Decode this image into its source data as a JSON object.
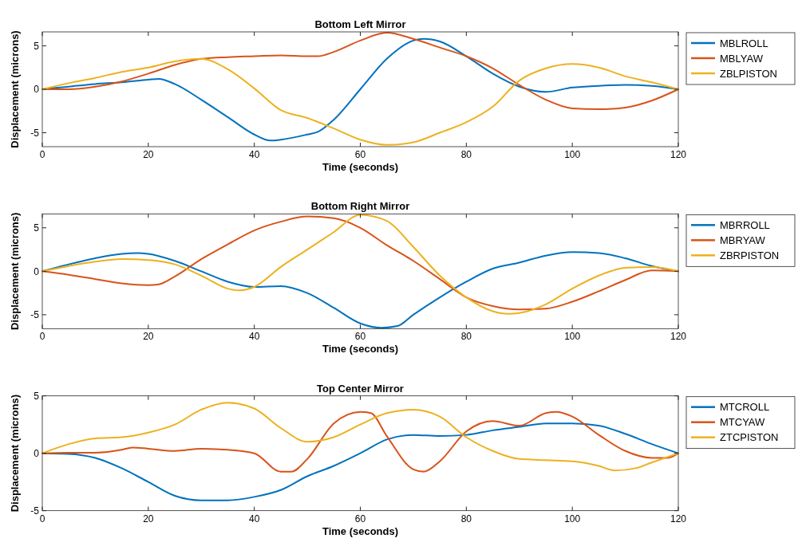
{
  "chart_data": [
    {
      "type": "line",
      "title": "Bottom Left Mirror",
      "xlabel": "Time (seconds)",
      "ylabel": "Displacement (microns)",
      "xlim": [
        0,
        120
      ],
      "xticks": [
        0,
        20,
        40,
        60,
        80,
        100,
        120
      ],
      "ylim": [
        -6.6,
        6.6
      ],
      "yticks": [
        -5,
        0,
        5
      ],
      "grid": false,
      "legend": "right",
      "marker": "none",
      "line_style": "solid",
      "series": [
        {
          "name": "MBLROLL",
          "color": "#0072bd",
          "x": [
            0,
            5,
            10,
            15,
            20,
            22,
            25,
            30,
            35,
            40,
            43,
            45,
            50,
            52,
            55,
            60,
            65,
            70,
            72,
            75,
            80,
            85,
            90,
            95,
            100,
            105,
            110,
            115,
            120
          ],
          "values": [
            0,
            0.3,
            0.6,
            0.8,
            1.1,
            1.2,
            0.6,
            -1.2,
            -3.2,
            -5.2,
            -5.9,
            -5.8,
            -5.2,
            -4.9,
            -3.5,
            0,
            3.5,
            5.6,
            5.8,
            5.5,
            3.8,
            1.8,
            0.3,
            -0.3,
            0.2,
            0.4,
            0.5,
            0.4,
            0
          ]
        },
        {
          "name": "MBLYAW",
          "color": "#d95319",
          "x": [
            0,
            5,
            10,
            15,
            20,
            25,
            30,
            35,
            40,
            45,
            50,
            52,
            55,
            60,
            65,
            70,
            75,
            80,
            85,
            90,
            95,
            100,
            105,
            110,
            115,
            120
          ],
          "values": [
            0,
            0,
            0.3,
            0.9,
            1.8,
            2.8,
            3.5,
            3.7,
            3.8,
            3.9,
            3.8,
            3.8,
            4.3,
            5.6,
            6.5,
            5.8,
            4.8,
            3.8,
            2.4,
            0.5,
            -1.2,
            -2.2,
            -2.3,
            -2.1,
            -1.3,
            0
          ]
        },
        {
          "name": "ZBLPISTON",
          "color": "#edb120",
          "x": [
            0,
            5,
            10,
            15,
            20,
            25,
            30,
            35,
            40,
            45,
            50,
            55,
            60,
            65,
            70,
            75,
            80,
            85,
            90,
            95,
            100,
            105,
            110,
            115,
            120
          ],
          "values": [
            0,
            0.7,
            1.3,
            2,
            2.5,
            3.2,
            3.5,
            2.3,
            0.1,
            -2.4,
            -3.3,
            -4.5,
            -5.8,
            -6.4,
            -6.1,
            -5,
            -3.8,
            -2,
            1,
            2.4,
            2.9,
            2.5,
            1.5,
            0.8,
            0
          ]
        }
      ]
    },
    {
      "type": "line",
      "title": "Bottom Right Mirror",
      "xlabel": "Time (seconds)",
      "ylabel": "Displacement (microns)",
      "xlim": [
        0,
        120
      ],
      "xticks": [
        0,
        20,
        40,
        60,
        80,
        100,
        120
      ],
      "ylim": [
        -6.6,
        6.6
      ],
      "yticks": [
        -5,
        0,
        5
      ],
      "grid": false,
      "legend": "right",
      "marker": "none",
      "line_style": "solid",
      "series": [
        {
          "name": "MBRROLL",
          "color": "#0072bd",
          "x": [
            0,
            5,
            10,
            15,
            18,
            20,
            25,
            30,
            35,
            40,
            45,
            50,
            55,
            60,
            64,
            67,
            70,
            75,
            80,
            85,
            90,
            95,
            100,
            105,
            110,
            115,
            120
          ],
          "values": [
            0,
            0.8,
            1.5,
            2,
            2.1,
            2,
            1.2,
            0,
            -1.2,
            -1.8,
            -1.7,
            -2.5,
            -4.2,
            -6,
            -6.5,
            -6.3,
            -5,
            -3,
            -1.2,
            0.3,
            1,
            1.8,
            2.2,
            2.1,
            1.5,
            0.6,
            0
          ]
        },
        {
          "name": "MBRYAW",
          "color": "#d95319",
          "x": [
            0,
            5,
            10,
            15,
            20,
            22,
            25,
            30,
            35,
            40,
            45,
            50,
            55,
            60,
            65,
            70,
            75,
            80,
            85,
            90,
            95,
            100,
            105,
            110,
            115,
            120
          ],
          "values": [
            0,
            -0.4,
            -0.9,
            -1.4,
            -1.6,
            -1.5,
            -0.6,
            1.4,
            3.1,
            4.7,
            5.7,
            6.3,
            6.1,
            5,
            3,
            1.2,
            -0.9,
            -3,
            -4,
            -4.4,
            -4.3,
            -3.5,
            -2.3,
            -1,
            0.1,
            0
          ]
        },
        {
          "name": "ZBRPISTON",
          "color": "#edb120",
          "x": [
            0,
            5,
            10,
            15,
            20,
            25,
            30,
            35,
            37,
            40,
            45,
            50,
            55,
            60,
            65,
            70,
            75,
            80,
            85,
            88,
            90,
            95,
            100,
            105,
            110,
            115,
            120
          ],
          "values": [
            0,
            0.6,
            1.1,
            1.4,
            1.3,
            0.8,
            -0.5,
            -2,
            -2.2,
            -1.8,
            0.5,
            2.5,
            4.5,
            6.5,
            5.8,
            2.8,
            -0.5,
            -3,
            -4.6,
            -4.9,
            -4.8,
            -3.8,
            -2,
            -0.5,
            0.4,
            0.5,
            0
          ]
        }
      ]
    },
    {
      "type": "line",
      "title": "Top Center Mirror",
      "xlabel": "Time (seconds)",
      "ylabel": "Displacement (microns)",
      "xlim": [
        0,
        120
      ],
      "xticks": [
        0,
        20,
        40,
        60,
        80,
        100,
        120
      ],
      "ylim": [
        -5,
        5
      ],
      "yticks": [
        -5,
        0,
        5
      ],
      "grid": false,
      "legend": "right",
      "marker": "none",
      "line_style": "solid",
      "series": [
        {
          "name": "MTCROLL",
          "color": "#0072bd",
          "x": [
            0,
            5,
            10,
            15,
            20,
            25,
            30,
            35,
            40,
            45,
            50,
            55,
            60,
            65,
            70,
            75,
            80,
            85,
            90,
            95,
            100,
            105,
            110,
            115,
            120
          ],
          "values": [
            0,
            -0.05,
            -0.4,
            -1.3,
            -2.5,
            -3.7,
            -4.1,
            -4.1,
            -3.8,
            -3.2,
            -2,
            -1.1,
            0,
            1.2,
            1.6,
            1.5,
            1.6,
            2,
            2.3,
            2.6,
            2.6,
            2.4,
            1.7,
            0.8,
            0
          ]
        },
        {
          "name": "MTCYAW",
          "color": "#d95319",
          "x": [
            0,
            5,
            10,
            15,
            17,
            20,
            25,
            30,
            35,
            40,
            45,
            47,
            50,
            55,
            60,
            62,
            65,
            70,
            72,
            75,
            80,
            85,
            90,
            95,
            97,
            100,
            105,
            110,
            115,
            118,
            120
          ],
          "values": [
            0,
            0.05,
            0.05,
            0.3,
            0.5,
            0.4,
            0.2,
            0.4,
            0.3,
            0,
            -1.6,
            -1.6,
            -0.5,
            2.6,
            3.6,
            3.5,
            1.5,
            -1.4,
            -1.6,
            -0.7,
            1.9,
            2.8,
            2.4,
            3.5,
            3.6,
            3.2,
            1.6,
            0.2,
            -0.4,
            -0.4,
            0
          ]
        },
        {
          "name": "ZTCPISTON",
          "color": "#edb120",
          "x": [
            0,
            5,
            10,
            15,
            20,
            25,
            30,
            35,
            40,
            45,
            50,
            55,
            60,
            65,
            70,
            75,
            80,
            85,
            90,
            95,
            100,
            105,
            108,
            112,
            115,
            120
          ],
          "values": [
            0,
            0.8,
            1.3,
            1.4,
            1.8,
            2.5,
            3.8,
            4.4,
            3.9,
            2.2,
            1,
            1.4,
            2.5,
            3.5,
            3.8,
            3.2,
            1.4,
            0.2,
            -0.5,
            -0.6,
            -0.7,
            -1.1,
            -1.5,
            -1.3,
            -0.8,
            0
          ]
        }
      ]
    }
  ]
}
